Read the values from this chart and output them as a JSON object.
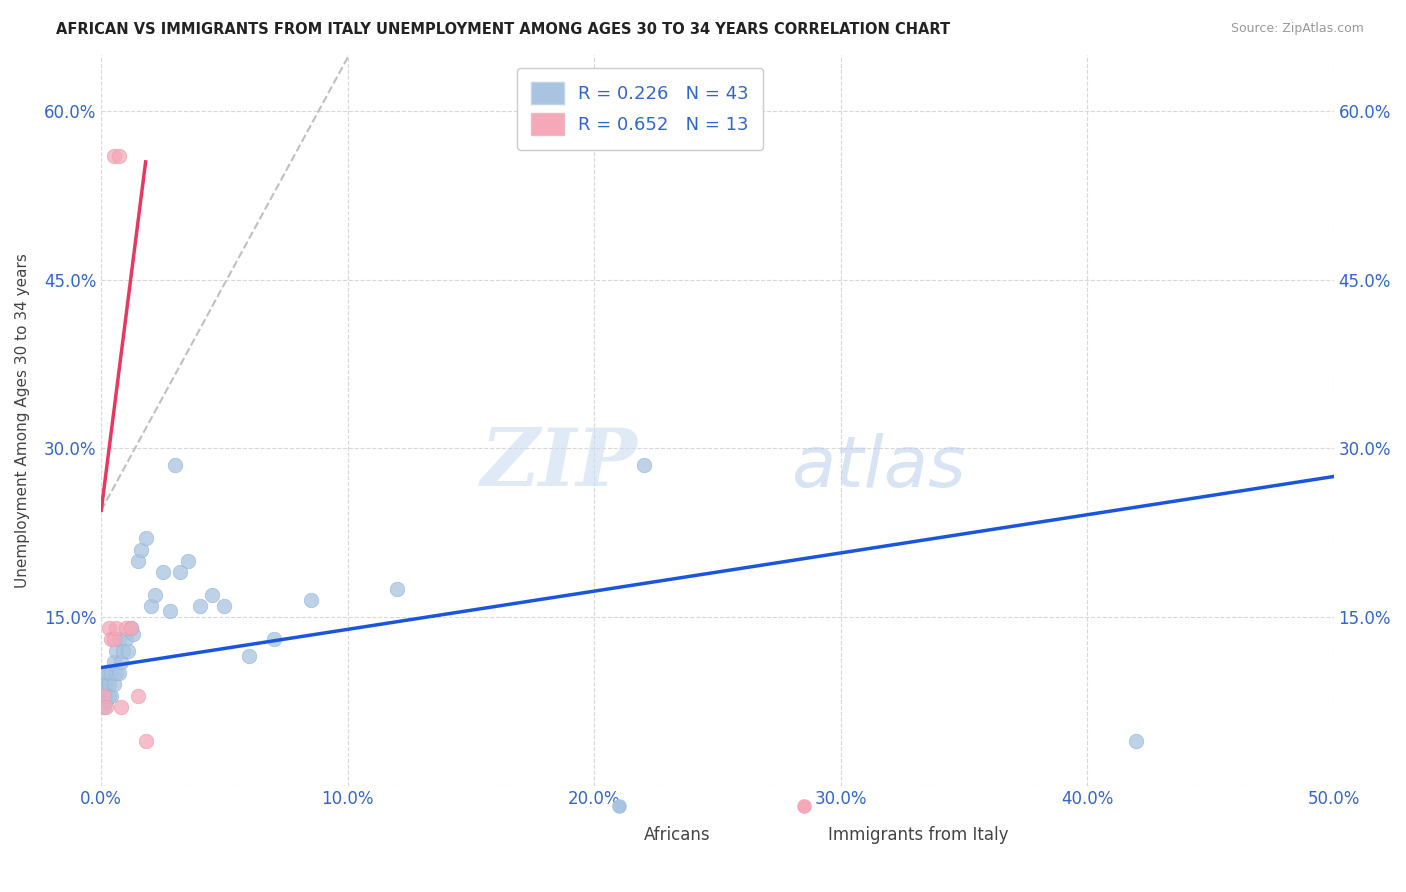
{
  "title": "AFRICAN VS IMMIGRANTS FROM ITALY UNEMPLOYMENT AMONG AGES 30 TO 34 YEARS CORRELATION CHART",
  "source": "Source: ZipAtlas.com",
  "xlabel": "",
  "ylabel": "Unemployment Among Ages 30 to 34 years",
  "xlim": [
    0.0,
    0.5
  ],
  "ylim": [
    0.0,
    0.65
  ],
  "xticks": [
    0.0,
    0.1,
    0.2,
    0.3,
    0.4,
    0.5
  ],
  "yticks": [
    0.0,
    0.15,
    0.3,
    0.45,
    0.6
  ],
  "xticklabels": [
    "0.0%",
    "10.0%",
    "20.0%",
    "30.0%",
    "40.0%",
    "50.0%"
  ],
  "yticklabels": [
    "",
    "15.0%",
    "30.0%",
    "45.0%",
    "60.0%"
  ],
  "legend_labels": [
    "Africans",
    "Immigrants from Italy"
  ],
  "R_african": 0.226,
  "N_african": 43,
  "R_italy": 0.652,
  "N_italy": 13,
  "color_african": "#a8c4e0",
  "color_italy": "#f4a8b8",
  "trendline_african_color": "#1a56db",
  "trendline_italy_color": "#e83860",
  "trendline_italy_dashed_color": "#c0c0c0",
  "watermark_zip": "ZIP",
  "watermark_atlas": "atlas",
  "background_color": "#ffffff",
  "grid_color": "#d8d8d8",
  "africans_x": [
    0.001,
    0.001,
    0.001,
    0.002,
    0.002,
    0.002,
    0.002,
    0.003,
    0.003,
    0.003,
    0.004,
    0.004,
    0.005,
    0.005,
    0.006,
    0.006,
    0.007,
    0.007,
    0.008,
    0.009,
    0.01,
    0.011,
    0.012,
    0.013,
    0.015,
    0.016,
    0.018,
    0.02,
    0.022,
    0.025,
    0.028,
    0.03,
    0.032,
    0.035,
    0.04,
    0.045,
    0.05,
    0.06,
    0.07,
    0.085,
    0.12,
    0.22,
    0.42
  ],
  "africans_y": [
    0.07,
    0.08,
    0.09,
    0.075,
    0.085,
    0.09,
    0.1,
    0.08,
    0.09,
    0.1,
    0.08,
    0.1,
    0.09,
    0.11,
    0.1,
    0.12,
    0.1,
    0.13,
    0.11,
    0.12,
    0.13,
    0.12,
    0.14,
    0.135,
    0.2,
    0.21,
    0.22,
    0.16,
    0.17,
    0.19,
    0.155,
    0.285,
    0.19,
    0.2,
    0.16,
    0.17,
    0.16,
    0.115,
    0.13,
    0.165,
    0.175,
    0.285,
    0.04
  ],
  "italy_x": [
    0.001,
    0.002,
    0.003,
    0.004,
    0.005,
    0.005,
    0.006,
    0.007,
    0.008,
    0.01,
    0.012,
    0.015,
    0.018
  ],
  "italy_y": [
    0.08,
    0.07,
    0.14,
    0.13,
    0.56,
    0.13,
    0.14,
    0.56,
    0.07,
    0.14,
    0.14,
    0.08,
    0.04
  ],
  "trendline_african_x0": 0.0,
  "trendline_african_y0": 0.105,
  "trendline_african_x1": 0.5,
  "trendline_african_y1": 0.275,
  "trendline_italy_solid_x0": 0.0,
  "trendline_italy_solid_y0": 0.245,
  "trendline_italy_solid_x1": 0.018,
  "trendline_italy_solid_y1": 0.555,
  "trendline_italy_dash_x0": 0.0,
  "trendline_italy_dash_y0": 0.245,
  "trendline_italy_dash_x1": 0.1,
  "trendline_italy_dash_y1": 0.648
}
